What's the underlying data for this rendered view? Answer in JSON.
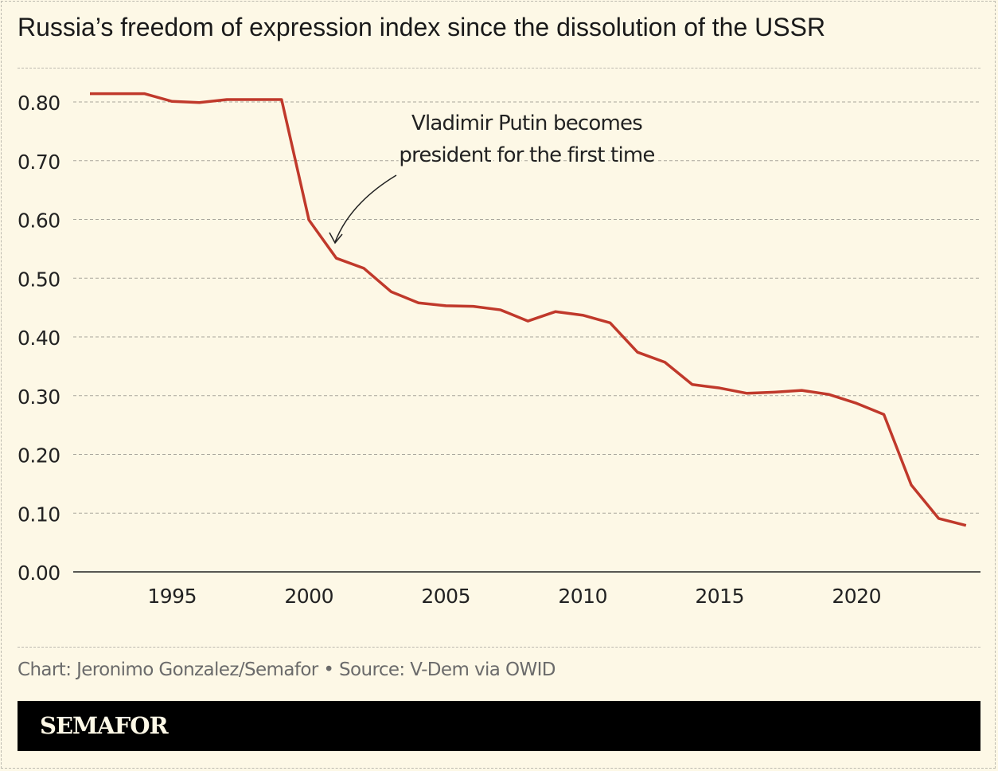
{
  "title": "Russia’s freedom of expression index since the dissolution of the USSR",
  "source": "Chart: Jeronimo Gonzalez/Semafor • Source: V-Dem via OWID",
  "logo": "SEMAFOR",
  "colors": {
    "line": "#c0392b",
    "background": "#fdf8e6",
    "banner": "#000000"
  },
  "chart_data": {
    "type": "line",
    "title": "Russia’s freedom of expression index since the dissolution of the USSR",
    "xlabel": "",
    "ylabel": "",
    "xlim": [
      1992,
      2024
    ],
    "ylim": [
      0,
      0.8
    ],
    "grid": true,
    "y_ticks": [
      "0.00",
      "0.10",
      "0.20",
      "0.30",
      "0.40",
      "0.50",
      "0.60",
      "0.70",
      "0.80"
    ],
    "x_ticks": [
      "1995",
      "2000",
      "2005",
      "2010",
      "2015",
      "2020"
    ],
    "x": [
      1992,
      1993,
      1994,
      1995,
      1996,
      1997,
      1998,
      1999,
      2000,
      2001,
      2002,
      2003,
      2004,
      2005,
      2006,
      2007,
      2008,
      2009,
      2010,
      2011,
      2012,
      2013,
      2014,
      2015,
      2016,
      2017,
      2018,
      2019,
      2020,
      2021,
      2022,
      2023,
      2024
    ],
    "values": [
      0.814,
      0.814,
      0.814,
      0.801,
      0.799,
      0.804,
      0.804,
      0.804,
      0.599,
      0.534,
      0.517,
      0.477,
      0.458,
      0.453,
      0.452,
      0.446,
      0.427,
      0.443,
      0.437,
      0.424,
      0.374,
      0.357,
      0.319,
      0.313,
      0.304,
      0.306,
      0.309,
      0.302,
      0.287,
      0.268,
      0.148,
      0.091,
      0.079
    ],
    "annotations": [
      {
        "text_lines": [
          "Vladimir Putin becomes",
          "president for the first time"
        ],
        "x": 2001,
        "y": 0.534
      }
    ]
  }
}
